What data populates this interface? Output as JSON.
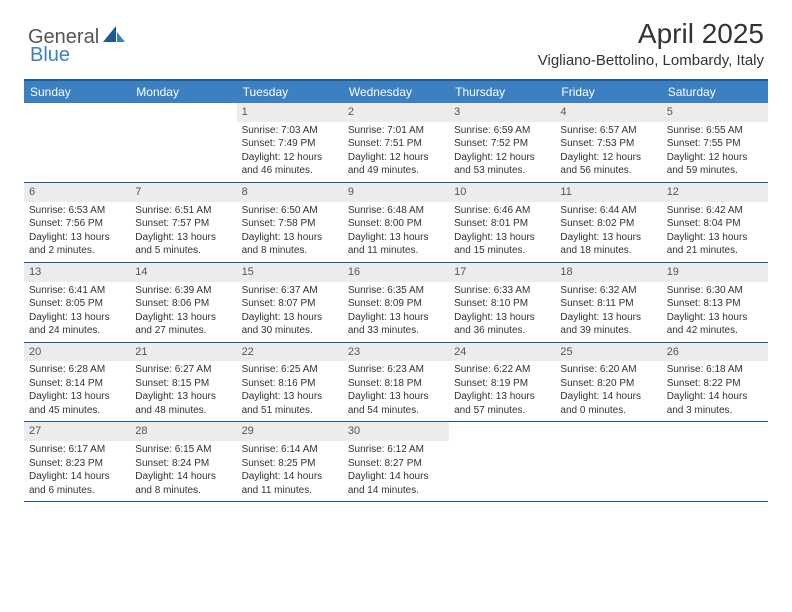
{
  "logo": {
    "general": "General",
    "blue": "Blue"
  },
  "title": "April 2025",
  "location": "Vigliano-Bettolino, Lombardy, Italy",
  "day_names": [
    "Sunday",
    "Monday",
    "Tuesday",
    "Wednesday",
    "Thursday",
    "Friday",
    "Saturday"
  ],
  "colors": {
    "header_bg": "#3a80c3",
    "header_text": "#ffffff",
    "border": "#1e5a96",
    "daynum_bg": "#ececec",
    "body_text": "#333333"
  },
  "weeks": [
    [
      {
        "n": "",
        "sr": "",
        "ss": "",
        "dl": ""
      },
      {
        "n": "",
        "sr": "",
        "ss": "",
        "dl": ""
      },
      {
        "n": "1",
        "sr": "Sunrise: 7:03 AM",
        "ss": "Sunset: 7:49 PM",
        "dl": "Daylight: 12 hours and 46 minutes."
      },
      {
        "n": "2",
        "sr": "Sunrise: 7:01 AM",
        "ss": "Sunset: 7:51 PM",
        "dl": "Daylight: 12 hours and 49 minutes."
      },
      {
        "n": "3",
        "sr": "Sunrise: 6:59 AM",
        "ss": "Sunset: 7:52 PM",
        "dl": "Daylight: 12 hours and 53 minutes."
      },
      {
        "n": "4",
        "sr": "Sunrise: 6:57 AM",
        "ss": "Sunset: 7:53 PM",
        "dl": "Daylight: 12 hours and 56 minutes."
      },
      {
        "n": "5",
        "sr": "Sunrise: 6:55 AM",
        "ss": "Sunset: 7:55 PM",
        "dl": "Daylight: 12 hours and 59 minutes."
      }
    ],
    [
      {
        "n": "6",
        "sr": "Sunrise: 6:53 AM",
        "ss": "Sunset: 7:56 PM",
        "dl": "Daylight: 13 hours and 2 minutes."
      },
      {
        "n": "7",
        "sr": "Sunrise: 6:51 AM",
        "ss": "Sunset: 7:57 PM",
        "dl": "Daylight: 13 hours and 5 minutes."
      },
      {
        "n": "8",
        "sr": "Sunrise: 6:50 AM",
        "ss": "Sunset: 7:58 PM",
        "dl": "Daylight: 13 hours and 8 minutes."
      },
      {
        "n": "9",
        "sr": "Sunrise: 6:48 AM",
        "ss": "Sunset: 8:00 PM",
        "dl": "Daylight: 13 hours and 11 minutes."
      },
      {
        "n": "10",
        "sr": "Sunrise: 6:46 AM",
        "ss": "Sunset: 8:01 PM",
        "dl": "Daylight: 13 hours and 15 minutes."
      },
      {
        "n": "11",
        "sr": "Sunrise: 6:44 AM",
        "ss": "Sunset: 8:02 PM",
        "dl": "Daylight: 13 hours and 18 minutes."
      },
      {
        "n": "12",
        "sr": "Sunrise: 6:42 AM",
        "ss": "Sunset: 8:04 PM",
        "dl": "Daylight: 13 hours and 21 minutes."
      }
    ],
    [
      {
        "n": "13",
        "sr": "Sunrise: 6:41 AM",
        "ss": "Sunset: 8:05 PM",
        "dl": "Daylight: 13 hours and 24 minutes."
      },
      {
        "n": "14",
        "sr": "Sunrise: 6:39 AM",
        "ss": "Sunset: 8:06 PM",
        "dl": "Daylight: 13 hours and 27 minutes."
      },
      {
        "n": "15",
        "sr": "Sunrise: 6:37 AM",
        "ss": "Sunset: 8:07 PM",
        "dl": "Daylight: 13 hours and 30 minutes."
      },
      {
        "n": "16",
        "sr": "Sunrise: 6:35 AM",
        "ss": "Sunset: 8:09 PM",
        "dl": "Daylight: 13 hours and 33 minutes."
      },
      {
        "n": "17",
        "sr": "Sunrise: 6:33 AM",
        "ss": "Sunset: 8:10 PM",
        "dl": "Daylight: 13 hours and 36 minutes."
      },
      {
        "n": "18",
        "sr": "Sunrise: 6:32 AM",
        "ss": "Sunset: 8:11 PM",
        "dl": "Daylight: 13 hours and 39 minutes."
      },
      {
        "n": "19",
        "sr": "Sunrise: 6:30 AM",
        "ss": "Sunset: 8:13 PM",
        "dl": "Daylight: 13 hours and 42 minutes."
      }
    ],
    [
      {
        "n": "20",
        "sr": "Sunrise: 6:28 AM",
        "ss": "Sunset: 8:14 PM",
        "dl": "Daylight: 13 hours and 45 minutes."
      },
      {
        "n": "21",
        "sr": "Sunrise: 6:27 AM",
        "ss": "Sunset: 8:15 PM",
        "dl": "Daylight: 13 hours and 48 minutes."
      },
      {
        "n": "22",
        "sr": "Sunrise: 6:25 AM",
        "ss": "Sunset: 8:16 PM",
        "dl": "Daylight: 13 hours and 51 minutes."
      },
      {
        "n": "23",
        "sr": "Sunrise: 6:23 AM",
        "ss": "Sunset: 8:18 PM",
        "dl": "Daylight: 13 hours and 54 minutes."
      },
      {
        "n": "24",
        "sr": "Sunrise: 6:22 AM",
        "ss": "Sunset: 8:19 PM",
        "dl": "Daylight: 13 hours and 57 minutes."
      },
      {
        "n": "25",
        "sr": "Sunrise: 6:20 AM",
        "ss": "Sunset: 8:20 PM",
        "dl": "Daylight: 14 hours and 0 minutes."
      },
      {
        "n": "26",
        "sr": "Sunrise: 6:18 AM",
        "ss": "Sunset: 8:22 PM",
        "dl": "Daylight: 14 hours and 3 minutes."
      }
    ],
    [
      {
        "n": "27",
        "sr": "Sunrise: 6:17 AM",
        "ss": "Sunset: 8:23 PM",
        "dl": "Daylight: 14 hours and 6 minutes."
      },
      {
        "n": "28",
        "sr": "Sunrise: 6:15 AM",
        "ss": "Sunset: 8:24 PM",
        "dl": "Daylight: 14 hours and 8 minutes."
      },
      {
        "n": "29",
        "sr": "Sunrise: 6:14 AM",
        "ss": "Sunset: 8:25 PM",
        "dl": "Daylight: 14 hours and 11 minutes."
      },
      {
        "n": "30",
        "sr": "Sunrise: 6:12 AM",
        "ss": "Sunset: 8:27 PM",
        "dl": "Daylight: 14 hours and 14 minutes."
      },
      {
        "n": "",
        "sr": "",
        "ss": "",
        "dl": ""
      },
      {
        "n": "",
        "sr": "",
        "ss": "",
        "dl": ""
      },
      {
        "n": "",
        "sr": "",
        "ss": "",
        "dl": ""
      }
    ]
  ]
}
